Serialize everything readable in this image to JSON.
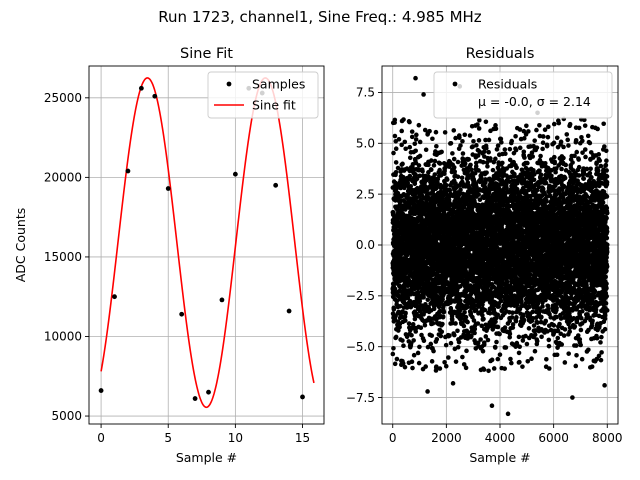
{
  "figure": {
    "suptitle": "Run 1723, channel1, Sine Freq.: 4.985 MHz"
  },
  "chart_data": [
    {
      "type": "line",
      "title": "Sine Fit",
      "xlabel": "Sample #",
      "ylabel": "ADC Counts",
      "xlim": [
        -0.9,
        16.6
      ],
      "ylim": [
        4500,
        27000
      ],
      "xticks": [
        0,
        5,
        10,
        15
      ],
      "xtick_labels": [
        "0",
        "5",
        "10",
        "15"
      ],
      "yticks": [
        5000,
        10000,
        15000,
        20000,
        25000
      ],
      "ytick_labels": [
        "5000",
        "10000",
        "15000",
        "20000",
        "25000"
      ],
      "grid": true,
      "legend_position": "top-right",
      "series": [
        {
          "name": "Samples",
          "kind": "scatter",
          "color": "#000000",
          "x": [
            0,
            1,
            2,
            3,
            4,
            5,
            6,
            7,
            8,
            9,
            10,
            11,
            12,
            13,
            14,
            15
          ],
          "y": [
            6600,
            12500,
            20400,
            25600,
            25100,
            19300,
            11400,
            6100,
            6500,
            12300,
            20200,
            25600,
            25300,
            19500,
            11600,
            6200
          ]
        },
        {
          "name": "Sine fit",
          "kind": "line",
          "color": "#ff0000",
          "model": {
            "offset": 15900,
            "amplitude": 10350,
            "period": 8.78,
            "peak_at": 3.45,
            "x_start": 0,
            "x_end": 15.85
          }
        }
      ]
    },
    {
      "type": "scatter",
      "title": "Residuals",
      "xlabel": "Sample #",
      "ylabel": "",
      "xlim": [
        -400,
        8400
      ],
      "ylim": [
        -8.8,
        8.8
      ],
      "xticks": [
        0,
        2000,
        4000,
        6000,
        8000
      ],
      "xtick_labels": [
        "0",
        "2000",
        "4000",
        "6000",
        "8000"
      ],
      "yticks": [
        -7.5,
        -5.0,
        -2.5,
        0.0,
        2.5,
        5.0,
        7.5
      ],
      "ytick_labels": [
        "−7.5",
        "−5.0",
        "−2.5",
        "0.0",
        "2.5",
        "5.0",
        "7.5"
      ],
      "grid": true,
      "legend_position": "top-right",
      "series": [
        {
          "name": "Residuals",
          "color": "#000000",
          "generated": {
            "count": 8000,
            "x_min": 0,
            "x_max": 8000,
            "mean": 0.0,
            "sigma": 2.14,
            "seed": 1723
          },
          "x": [
            850,
            4300,
            3700,
            1300,
            6700,
            2500,
            5400,
            2250,
            1150,
            7900
          ],
          "y": [
            8.2,
            -8.3,
            -7.9,
            -7.2,
            -7.5,
            7.8,
            6.5,
            -6.8,
            7.4,
            -6.9
          ]
        }
      ],
      "legend_lines": [
        "Residuals",
        "μ = -0.0, σ = 2.14"
      ]
    }
  ]
}
